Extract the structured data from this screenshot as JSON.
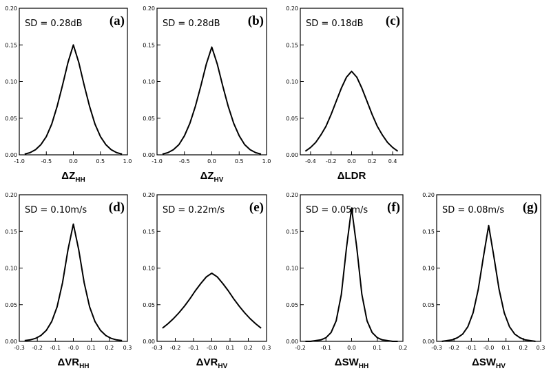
{
  "chart_data": [
    {
      "type": "line",
      "panel": "(a)",
      "annotation": "SD = 0.28dB",
      "xlabel_main": "ΔZ",
      "xlabel_sub": "HH",
      "xlim": [
        -1.0,
        1.0
      ],
      "ylim": [
        0,
        0.2
      ],
      "xticks": [
        -1.0,
        -0.5,
        0.0,
        0.5,
        1.0
      ],
      "xtick_labels": [
        "-1.0",
        "-0.5",
        "0.0",
        "0.5",
        "1.0"
      ],
      "yticks": [
        0,
        0.05,
        0.1,
        0.15,
        0.2
      ],
      "ytick_labels": [
        "0.00",
        "0.05",
        "0.10",
        "0.15",
        "0.20"
      ],
      "x": [
        -0.9,
        -0.8,
        -0.7,
        -0.6,
        -0.5,
        -0.4,
        -0.3,
        -0.2,
        -0.1,
        0.0,
        0.1,
        0.2,
        0.3,
        0.4,
        0.5,
        0.6,
        0.7,
        0.8,
        0.9
      ],
      "y": [
        0.001,
        0.003,
        0.007,
        0.014,
        0.025,
        0.042,
        0.066,
        0.095,
        0.126,
        0.15,
        0.126,
        0.095,
        0.066,
        0.042,
        0.025,
        0.014,
        0.007,
        0.003,
        0.001
      ]
    },
    {
      "type": "line",
      "panel": "(b)",
      "annotation": "SD = 0.28dB",
      "xlabel_main": "ΔZ",
      "xlabel_sub": "HV",
      "xlim": [
        -1.0,
        1.0
      ],
      "ylim": [
        0,
        0.2
      ],
      "xticks": [
        -1.0,
        -0.5,
        0.0,
        0.5,
        1.0
      ],
      "xtick_labels": [
        "-1.0",
        "-0.5",
        "0.0",
        "0.5",
        "1.0"
      ],
      "yticks": [
        0,
        0.05,
        0.1,
        0.15,
        0.2
      ],
      "ytick_labels": [
        "0.00",
        "0.05",
        "0.10",
        "0.15",
        "0.20"
      ],
      "x": [
        -0.9,
        -0.8,
        -0.7,
        -0.6,
        -0.5,
        -0.4,
        -0.3,
        -0.2,
        -0.1,
        0.0,
        0.1,
        0.2,
        0.3,
        0.4,
        0.5,
        0.6,
        0.7,
        0.8,
        0.9
      ],
      "y": [
        0.001,
        0.003,
        0.007,
        0.014,
        0.026,
        0.043,
        0.066,
        0.094,
        0.124,
        0.147,
        0.124,
        0.094,
        0.066,
        0.043,
        0.026,
        0.014,
        0.007,
        0.003,
        0.001
      ]
    },
    {
      "type": "line",
      "panel": "(c)",
      "annotation": "SD = 0.18dB",
      "xlabel_main": "ΔLDR",
      "xlabel_sub": "",
      "xlim": [
        -0.5,
        0.5
      ],
      "ylim": [
        0,
        0.2
      ],
      "xticks": [
        -0.4,
        -0.2,
        0.0,
        0.2,
        0.4
      ],
      "xtick_labels": [
        "-0.4",
        "-0.2",
        "0.0",
        "0.2",
        "0.4"
      ],
      "yticks": [
        0,
        0.05,
        0.1,
        0.15,
        0.2
      ],
      "ytick_labels": [
        "0.00",
        "0.05",
        "0.10",
        "0.15",
        "0.20"
      ],
      "x": [
        -0.45,
        -0.4,
        -0.35,
        -0.3,
        -0.25,
        -0.2,
        -0.15,
        -0.1,
        -0.05,
        0.0,
        0.05,
        0.1,
        0.15,
        0.2,
        0.25,
        0.3,
        0.35,
        0.4,
        0.45
      ],
      "y": [
        0.005,
        0.01,
        0.017,
        0.027,
        0.039,
        0.055,
        0.073,
        0.091,
        0.106,
        0.114,
        0.106,
        0.091,
        0.073,
        0.055,
        0.039,
        0.027,
        0.017,
        0.01,
        0.005
      ]
    },
    {
      "type": "line",
      "panel": "(d)",
      "annotation": "SD = 0.10m/s",
      "xlabel_main": "ΔVR",
      "xlabel_sub": "HH",
      "xlim": [
        -0.3,
        0.3
      ],
      "ylim": [
        0,
        0.2
      ],
      "xticks": [
        -0.3,
        -0.2,
        -0.1,
        0.0,
        0.1,
        0.2,
        0.3
      ],
      "xtick_labels": [
        "-0.3",
        "-0.2",
        "-0.1",
        "-0.0",
        "0.1",
        "0.2",
        "0.3"
      ],
      "yticks": [
        0,
        0.05,
        0.1,
        0.15,
        0.2
      ],
      "ytick_labels": [
        "0.00",
        "0.05",
        "0.10",
        "0.15",
        "0.20"
      ],
      "x": [
        -0.27,
        -0.24,
        -0.21,
        -0.18,
        -0.15,
        -0.12,
        -0.09,
        -0.06,
        -0.03,
        0.0,
        0.03,
        0.06,
        0.09,
        0.12,
        0.15,
        0.18,
        0.21,
        0.24,
        0.27
      ],
      "y": [
        0.001,
        0.002,
        0.004,
        0.008,
        0.015,
        0.027,
        0.047,
        0.08,
        0.125,
        0.16,
        0.125,
        0.08,
        0.047,
        0.027,
        0.015,
        0.008,
        0.004,
        0.002,
        0.001
      ]
    },
    {
      "type": "line",
      "panel": "(e)",
      "annotation": "SD = 0.22m/s",
      "xlabel_main": "ΔVR",
      "xlabel_sub": "HV",
      "xlim": [
        -0.3,
        0.3
      ],
      "ylim": [
        0,
        0.2
      ],
      "xticks": [
        -0.3,
        -0.2,
        -0.1,
        0.0,
        0.1,
        0.2,
        0.3
      ],
      "xtick_labels": [
        "-0.3",
        "-0.2",
        "-0.1",
        "-0.0",
        "0.1",
        "0.2",
        "0.3"
      ],
      "yticks": [
        0,
        0.05,
        0.1,
        0.15,
        0.2
      ],
      "ytick_labels": [
        "0.00",
        "0.05",
        "0.10",
        "0.15",
        "0.20"
      ],
      "x": [
        -0.27,
        -0.24,
        -0.21,
        -0.18,
        -0.15,
        -0.12,
        -0.09,
        -0.06,
        -0.03,
        0.0,
        0.03,
        0.06,
        0.09,
        0.12,
        0.15,
        0.18,
        0.21,
        0.24,
        0.27
      ],
      "y": [
        0.018,
        0.024,
        0.031,
        0.039,
        0.048,
        0.058,
        0.069,
        0.079,
        0.088,
        0.093,
        0.088,
        0.079,
        0.069,
        0.058,
        0.048,
        0.039,
        0.031,
        0.024,
        0.018
      ]
    },
    {
      "type": "line",
      "panel": "(f)",
      "annotation": "SD = 0.05m/s",
      "xlabel_main": "ΔSW",
      "xlabel_sub": "HH",
      "xlim": [
        -0.2,
        0.2
      ],
      "ylim": [
        0,
        0.2
      ],
      "xticks": [
        -0.2,
        -0.1,
        0.0,
        0.1,
        0.2
      ],
      "xtick_labels": [
        "-0.2",
        "-0.1",
        "0.0",
        "0.1",
        "0.2"
      ],
      "yticks": [
        0,
        0.05,
        0.1,
        0.15,
        0.2
      ],
      "ytick_labels": [
        "0.00",
        "0.05",
        "0.10",
        "0.15",
        "0.20"
      ],
      "x": [
        -0.18,
        -0.16,
        -0.14,
        -0.12,
        -0.1,
        -0.08,
        -0.06,
        -0.04,
        -0.02,
        0.0,
        0.02,
        0.04,
        0.06,
        0.08,
        0.1,
        0.12,
        0.14,
        0.16,
        0.18
      ],
      "y": [
        0.0,
        0.0,
        0.001,
        0.002,
        0.005,
        0.012,
        0.028,
        0.064,
        0.128,
        0.182,
        0.128,
        0.064,
        0.028,
        0.012,
        0.005,
        0.002,
        0.001,
        0.0,
        0.0
      ]
    },
    {
      "type": "line",
      "panel": "(g)",
      "annotation": "SD = 0.08m/s",
      "xlabel_main": "ΔSW",
      "xlabel_sub": "HV",
      "xlim": [
        -0.3,
        0.3
      ],
      "ylim": [
        0,
        0.2
      ],
      "xticks": [
        -0.3,
        -0.2,
        -0.1,
        0.0,
        0.1,
        0.2,
        0.3
      ],
      "xtick_labels": [
        "-0.3",
        "-0.2",
        "-0.1",
        "-0.0",
        "0.1",
        "0.2",
        "0.3"
      ],
      "yticks": [
        0,
        0.05,
        0.1,
        0.15,
        0.2
      ],
      "ytick_labels": [
        "0.00",
        "0.05",
        "0.10",
        "0.15",
        "0.20"
      ],
      "x": [
        -0.27,
        -0.24,
        -0.21,
        -0.18,
        -0.15,
        -0.12,
        -0.09,
        -0.06,
        -0.03,
        0.0,
        0.03,
        0.06,
        0.09,
        0.12,
        0.15,
        0.18,
        0.21,
        0.24,
        0.27
      ],
      "y": [
        0.0,
        0.001,
        0.002,
        0.005,
        0.01,
        0.02,
        0.039,
        0.071,
        0.116,
        0.158,
        0.116,
        0.071,
        0.039,
        0.02,
        0.01,
        0.005,
        0.002,
        0.001,
        0.0
      ]
    }
  ]
}
